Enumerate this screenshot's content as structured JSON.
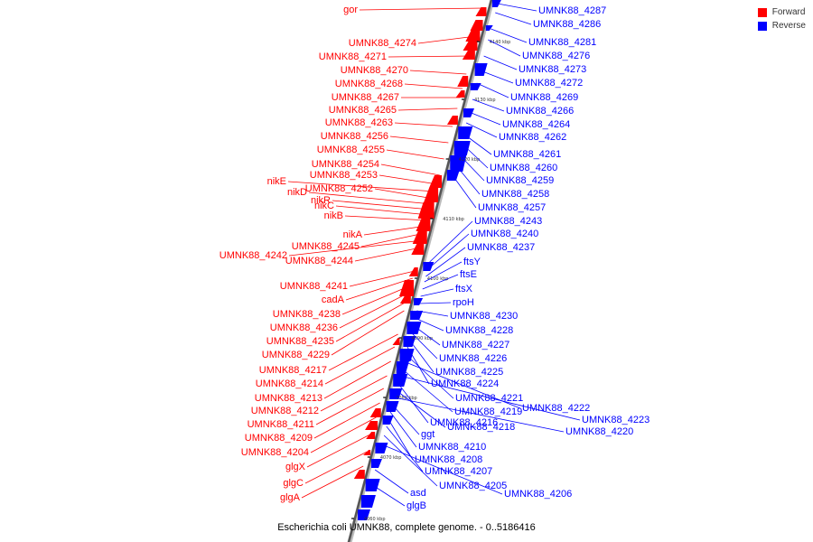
{
  "legend": {
    "forward_label": "Forward",
    "reverse_label": "Reverse",
    "forward_color": "#ff0000",
    "reverse_color": "#0000ff"
  },
  "caption": "Escherichia coli UMNK88, complete genome. - 0..5186416",
  "scale_ticks": [
    "4140 kbp",
    "4130 kbp",
    "4120 kbp",
    "4110 kbp",
    "4100 kbp",
    "4090 kbp",
    "4080 kbp",
    "4070 kbp",
    "4060 kbp"
  ],
  "forward_genes": [
    "gor",
    "UMNK88_4274",
    "UMNK88_4271",
    "UMNK88_4270",
    "UMNK88_4268",
    "UMNK88_4267",
    "UMNK88_4265",
    "UMNK88_4263",
    "UMNK88_4256",
    "UMNK88_4255",
    "UMNK88_4254",
    "UMNK88_4253",
    "nikE",
    "UMNK88_4252",
    "nikD",
    "nikR",
    "nikC",
    "nikB",
    "nikA",
    "UMNK88_4245",
    "UMNK88_4242",
    "UMNK88_4244",
    "UMNK88_4241",
    "cadA",
    "UMNK88_4238",
    "UMNK88_4236",
    "UMNK88_4235",
    "UMNK88_4229",
    "UMNK88_4217",
    "UMNK88_4214",
    "UMNK88_4213",
    "UMNK88_4212",
    "UMNK88_4211",
    "UMNK88_4209",
    "UMNK88_4204",
    "glgX",
    "glgC",
    "glgA"
  ],
  "reverse_genes": [
    "UMNK88_4287",
    "UMNK88_4286",
    "UMNK88_4281",
    "UMNK88_4276",
    "UMNK88_4273",
    "UMNK88_4272",
    "UMNK88_4269",
    "UMNK88_4266",
    "UMNK88_4264",
    "UMNK88_4262",
    "UMNK88_4261",
    "UMNK88_4260",
    "UMNK88_4259",
    "UMNK88_4258",
    "UMNK88_4257",
    "UMNK88_4243",
    "UMNK88_4240",
    "UMNK88_4237",
    "ftsY",
    "ftsE",
    "ftsX",
    "rpoH",
    "UMNK88_4230",
    "UMNK88_4228",
    "UMNK88_4227",
    "UMNK88_4226",
    "UMNK88_4225",
    "UMNK88_4224",
    "UMNK88_4221",
    "UMNK88_4222",
    "UMNK88_4219",
    "UMNK88_4223",
    "UMNK88_4216",
    "UMNK88_4218",
    "UMNK88_4220",
    "ggt",
    "UMNK88_4210",
    "UMNK88_4208",
    "UMNK88_4207",
    "UMNK88_4205",
    "UMNK88_4206",
    "asd",
    "glgB"
  ]
}
